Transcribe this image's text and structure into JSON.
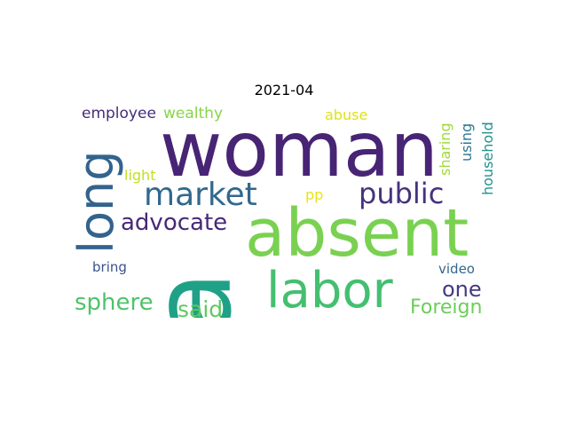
{
  "figure": {
    "title": "2021-04",
    "background": "#ffffff"
  },
  "wordcloud": {
    "colormap": "viridis",
    "words": [
      {
        "id": "woman",
        "text": "woman",
        "color": "#482475",
        "orientation": "horizontal"
      },
      {
        "id": "absent",
        "text": "absent",
        "color": "#7ad151",
        "orientation": "horizontal"
      },
      {
        "id": "a",
        "text": "a",
        "color": "#1fa187",
        "orientation": "vertical"
      },
      {
        "id": "long",
        "text": "long",
        "color": "#33638d",
        "orientation": "vertical"
      },
      {
        "id": "labor",
        "text": "labor",
        "color": "#44bf70",
        "orientation": "horizontal"
      },
      {
        "id": "market",
        "text": "market",
        "color": "#31688e",
        "orientation": "horizontal"
      },
      {
        "id": "public",
        "text": "public",
        "color": "#46327e",
        "orientation": "horizontal"
      },
      {
        "id": "advocate",
        "text": "advocate",
        "color": "#482878",
        "orientation": "horizontal"
      },
      {
        "id": "sphere",
        "text": "sphere",
        "color": "#4ec36b",
        "orientation": "horizontal"
      },
      {
        "id": "said",
        "text": "said",
        "color": "#5ec962",
        "orientation": "horizontal"
      },
      {
        "id": "one",
        "text": "one",
        "color": "#443983",
        "orientation": "horizontal"
      },
      {
        "id": "foreign",
        "text": "Foreign",
        "color": "#6ccd5a",
        "orientation": "horizontal"
      },
      {
        "id": "employee",
        "text": "employee",
        "color": "#472c7a",
        "orientation": "horizontal"
      },
      {
        "id": "wealthy",
        "text": "wealthy",
        "color": "#86d549",
        "orientation": "horizontal"
      },
      {
        "id": "abuse",
        "text": "abuse",
        "color": "#dde318",
        "orientation": "horizontal"
      },
      {
        "id": "light",
        "text": "light",
        "color": "#c2df23",
        "orientation": "horizontal"
      },
      {
        "id": "pp",
        "text": "pp",
        "color": "#e7e419",
        "orientation": "horizontal"
      },
      {
        "id": "bring",
        "text": "bring",
        "color": "#3b528b",
        "orientation": "horizontal"
      },
      {
        "id": "video",
        "text": "video",
        "color": "#31688e",
        "orientation": "horizontal"
      },
      {
        "id": "sharing",
        "text": "sharing",
        "color": "#a0da39",
        "orientation": "vertical"
      },
      {
        "id": "using",
        "text": "using",
        "color": "#2a788e",
        "orientation": "vertical"
      },
      {
        "id": "household",
        "text": "household",
        "color": "#21918c",
        "orientation": "vertical"
      }
    ]
  }
}
